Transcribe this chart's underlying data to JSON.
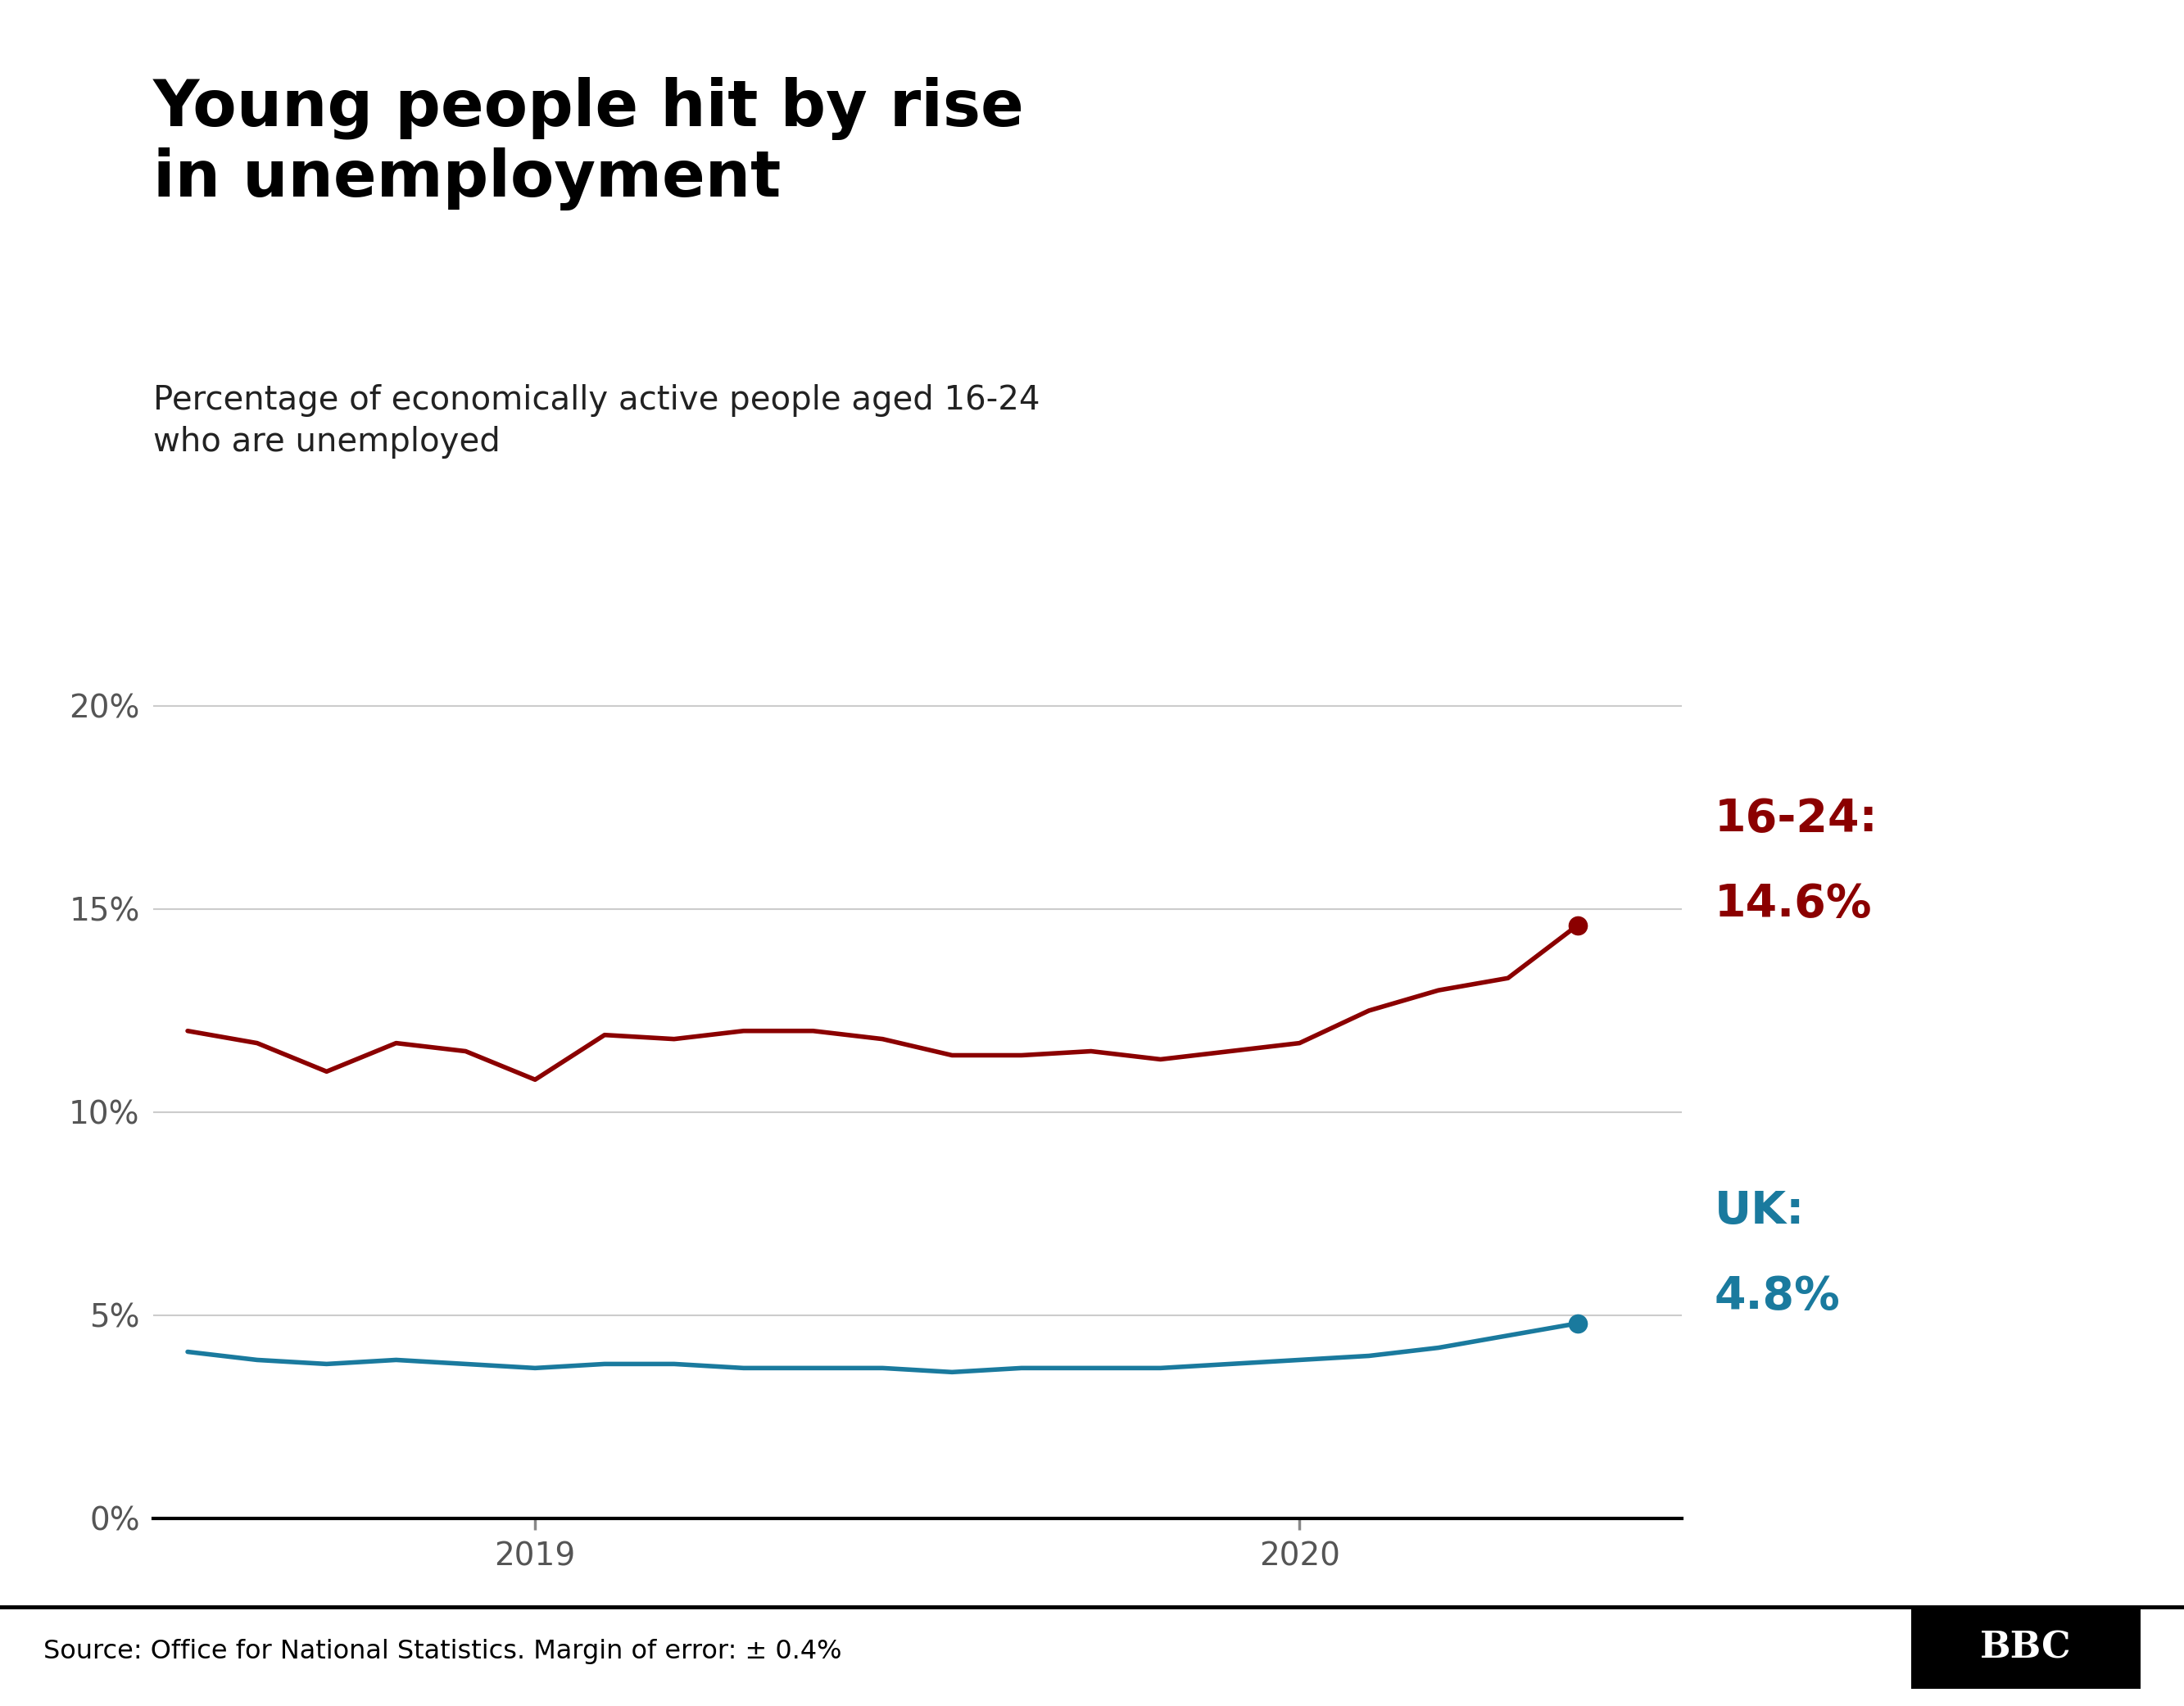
{
  "title": "Young people hit by rise\nin unemployment",
  "subtitle": "Percentage of economically active people aged 16-24\nwho are unemployed",
  "source_text": "Source: Office for National Statistics. Margin of error: ± 0.4%",
  "dark_red_color": "#8B0000",
  "blue_color": "#1a7a9e",
  "ylim": [
    0,
    21
  ],
  "yticks": [
    0,
    5,
    10,
    15,
    20
  ],
  "ytick_labels": [
    "0%",
    "5%",
    "10%",
    "15%",
    "20%"
  ],
  "xtick_positions": [
    5,
    16
  ],
  "xtick_labels": [
    "2019",
    "2020"
  ],
  "x_16_24": [
    0,
    1,
    2,
    3,
    4,
    5,
    6,
    7,
    8,
    9,
    10,
    11,
    12,
    13,
    14,
    15,
    16,
    17,
    18,
    19,
    20
  ],
  "y_16_24": [
    12.0,
    11.7,
    11.0,
    11.7,
    11.5,
    10.8,
    11.9,
    11.8,
    12.0,
    12.0,
    11.8,
    11.4,
    11.4,
    11.5,
    11.3,
    11.5,
    11.7,
    12.5,
    13.0,
    13.3,
    14.6
  ],
  "x_uk": [
    0,
    1,
    2,
    3,
    4,
    5,
    6,
    7,
    8,
    9,
    10,
    11,
    12,
    13,
    14,
    15,
    16,
    17,
    18,
    19,
    20
  ],
  "y_uk": [
    4.1,
    3.9,
    3.8,
    3.9,
    3.8,
    3.7,
    3.8,
    3.8,
    3.7,
    3.7,
    3.7,
    3.6,
    3.7,
    3.7,
    3.7,
    3.8,
    3.9,
    4.0,
    4.2,
    4.5,
    4.8
  ],
  "background_color": "#ffffff",
  "grid_color": "#cccccc"
}
